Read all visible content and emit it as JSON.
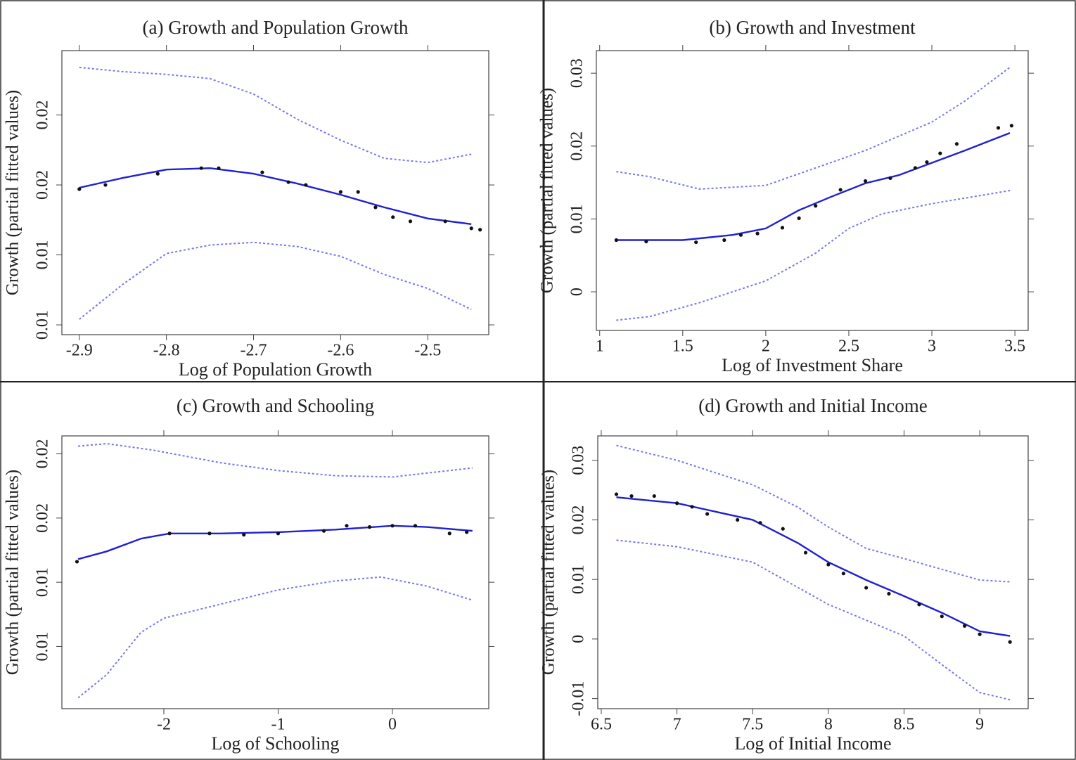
{
  "chart_data": [
    {
      "type": "line",
      "title": "(a) Growth and Population Growth",
      "x_label": "Log of Population Growth",
      "y_label": "Growth (partial fitted values)",
      "xlim": [
        -2.92,
        -2.43
      ],
      "ylim": [
        0.0043,
        0.0246
      ],
      "xticks": [
        -2.9,
        -2.8,
        -2.7,
        -2.6,
        -2.5
      ],
      "yticks": [
        {
          "value": 0.005,
          "label": "0.01"
        },
        {
          "value": 0.01,
          "label": "0.01"
        },
        {
          "value": 0.015,
          "label": "0.02"
        },
        {
          "value": 0.02,
          "label": "0.02"
        }
      ],
      "series": [
        {
          "style": "solid",
          "color": "#2020d0",
          "x": [
            -2.9,
            -2.85,
            -2.8,
            -2.75,
            -2.7,
            -2.65,
            -2.6,
            -2.55,
            -2.5,
            -2.45
          ],
          "values": [
            0.0148,
            0.0155,
            0.0161,
            0.0162,
            0.0158,
            0.0151,
            0.0143,
            0.0134,
            0.0126,
            0.0122
          ]
        },
        {
          "style": "dotted",
          "color": "#7777ee",
          "x": [
            -2.9,
            -2.85,
            -2.8,
            -2.75,
            -2.7,
            -2.65,
            -2.6,
            -2.55,
            -2.5,
            -2.45
          ],
          "values": [
            0.0234,
            0.0231,
            0.0229,
            0.0226,
            0.0215,
            0.0197,
            0.0182,
            0.0169,
            0.0166,
            0.0172
          ]
        },
        {
          "style": "dotted",
          "color": "#7777ee",
          "x": [
            -2.9,
            -2.85,
            -2.8,
            -2.75,
            -2.7,
            -2.65,
            -2.6,
            -2.55,
            -2.5,
            -2.45
          ],
          "values": [
            0.0054,
            0.0079,
            0.0101,
            0.0107,
            0.0109,
            0.0106,
            0.0099,
            0.0086,
            0.0076,
            0.0061
          ]
        },
        {
          "style": "points",
          "color": "#111111",
          "x": [
            -2.9,
            -2.87,
            -2.81,
            -2.76,
            -2.74,
            -2.69,
            -2.66,
            -2.64,
            -2.6,
            -2.58,
            -2.56,
            -2.54,
            -2.52,
            -2.48,
            -2.45,
            -2.44
          ],
          "values": [
            0.0147,
            0.015,
            0.0158,
            0.0162,
            0.0162,
            0.0159,
            0.0152,
            0.015,
            0.0145,
            0.0145,
            0.0134,
            0.0127,
            0.0124,
            0.0124,
            0.0119,
            0.0118
          ]
        }
      ]
    },
    {
      "type": "line",
      "title": "(b) Growth and Investment",
      "x_label": "Log of Investment Share",
      "y_label": "Growth (partial fitted values)",
      "xlim": [
        0.98,
        3.58
      ],
      "ylim": [
        -0.0053,
        0.0331
      ],
      "xticks": [
        1,
        1.5,
        2,
        2.5,
        3,
        3.5
      ],
      "yticks": [
        0,
        0.01,
        0.02,
        0.03
      ],
      "series": [
        {
          "style": "solid",
          "color": "#2020d0",
          "x": [
            1.1,
            1.5,
            1.8,
            2.0,
            2.2,
            2.4,
            2.6,
            2.8,
            3.0,
            3.2,
            3.47
          ],
          "values": [
            0.0071,
            0.0071,
            0.0078,
            0.0087,
            0.0112,
            0.0131,
            0.0149,
            0.016,
            0.0177,
            0.0194,
            0.0218
          ]
        },
        {
          "style": "dotted",
          "color": "#7777ee",
          "x": [
            1.1,
            1.3,
            1.6,
            2.0,
            2.3,
            2.6,
            3.0,
            3.2,
            3.47
          ],
          "values": [
            0.0165,
            0.0158,
            0.0141,
            0.0146,
            0.017,
            0.0194,
            0.0233,
            0.0262,
            0.0308
          ]
        },
        {
          "style": "dotted",
          "color": "#7777ee",
          "x": [
            1.1,
            1.3,
            1.6,
            2.0,
            2.3,
            2.5,
            2.7,
            3.0,
            3.47
          ],
          "values": [
            -0.0039,
            -0.0034,
            -0.0015,
            0.0015,
            0.0053,
            0.0087,
            0.0107,
            0.0121,
            0.0139
          ]
        },
        {
          "style": "points",
          "color": "#111111",
          "x": [
            1.1,
            1.28,
            1.58,
            1.75,
            1.85,
            1.95,
            2.1,
            2.2,
            2.3,
            2.45,
            2.6,
            2.75,
            2.9,
            2.97,
            3.05,
            3.15,
            3.4,
            3.48
          ],
          "values": [
            0.0071,
            0.0069,
            0.0068,
            0.0071,
            0.0078,
            0.008,
            0.0088,
            0.0101,
            0.0118,
            0.014,
            0.0152,
            0.0156,
            0.017,
            0.0178,
            0.019,
            0.0203,
            0.0225,
            0.0228
          ]
        }
      ]
    },
    {
      "type": "line",
      "title": "(c) Growth and Schooling",
      "x_label": "Log of Schooling",
      "y_label": "Growth (partial fitted values)",
      "xlim": [
        -2.892,
        0.843
      ],
      "ylim": [
        0.00015,
        0.0214
      ],
      "xticks": [
        -2,
        -1,
        0
      ],
      "yticks": [
        {
          "value": 0.005,
          "label": "0.01"
        },
        {
          "value": 0.01,
          "label": "0.01"
        },
        {
          "value": 0.015,
          "label": "0.02"
        },
        {
          "value": 0.02,
          "label": "0.02"
        }
      ],
      "series": [
        {
          "style": "solid",
          "color": "#2020d0",
          "x": [
            -2.75,
            -2.5,
            -2.2,
            -1.95,
            -1.5,
            -1,
            -0.5,
            0,
            0.3,
            0.7
          ],
          "values": [
            0.0118,
            0.0124,
            0.0134,
            0.0138,
            0.0138,
            0.0139,
            0.0141,
            0.0144,
            0.0143,
            0.014
          ]
        },
        {
          "style": "dotted",
          "color": "#7777ee",
          "x": [
            -2.75,
            -2.5,
            -2.1,
            -1.5,
            -1,
            -0.5,
            0,
            0.4,
            0.7
          ],
          "values": [
            0.0206,
            0.0208,
            0.0203,
            0.0193,
            0.0187,
            0.0183,
            0.0182,
            0.0186,
            0.0189
          ]
        },
        {
          "style": "dotted",
          "color": "#7777ee",
          "x": [
            -2.75,
            -2.5,
            -2.2,
            -2,
            -1.5,
            -1,
            -0.5,
            -0.1,
            0.3,
            0.7
          ],
          "values": [
            0.001,
            0.0028,
            0.0061,
            0.0072,
            0.0083,
            0.0094,
            0.0101,
            0.0104,
            0.0097,
            0.0086
          ]
        },
        {
          "style": "points",
          "color": "#111111",
          "x": [
            -2.76,
            -1.95,
            -1.6,
            -1.3,
            -1,
            -0.6,
            -0.4,
            -0.2,
            0,
            0.2,
            0.5,
            0.65
          ],
          "values": [
            0.0116,
            0.0138,
            0.0138,
            0.0137,
            0.0138,
            0.014,
            0.0144,
            0.0143,
            0.0144,
            0.0144,
            0.0138,
            0.0139
          ]
        }
      ]
    },
    {
      "type": "line",
      "title": "(d) Growth and Initial Income",
      "x_label": "Log of Initial Income",
      "y_label": "Growth (partial fitted values)",
      "xlim": [
        6.477,
        9.32
      ],
      "ylim": [
        -0.0117,
        0.0341
      ],
      "xticks": [
        6.5,
        7,
        7.5,
        8,
        8.5,
        9
      ],
      "yticks": [
        -0.01,
        0,
        0.01,
        0.02,
        0.03
      ],
      "series": [
        {
          "style": "solid",
          "color": "#2020d0",
          "x": [
            6.6,
            7,
            7.5,
            7.8,
            8,
            8.25,
            8.5,
            8.75,
            9,
            9.2
          ],
          "values": [
            0.0238,
            0.0228,
            0.02,
            0.0161,
            0.0129,
            0.0099,
            0.0072,
            0.0044,
            0.0013,
            0.0005
          ]
        },
        {
          "style": "dotted",
          "color": "#7777ee",
          "x": [
            6.6,
            7,
            7.5,
            7.8,
            8,
            8.25,
            8.5,
            8.75,
            9,
            9.2
          ],
          "values": [
            0.0325,
            0.03,
            0.0259,
            0.0221,
            0.0188,
            0.0152,
            0.0135,
            0.0117,
            0.0099,
            0.0096
          ]
        },
        {
          "style": "dotted",
          "color": "#7777ee",
          "x": [
            6.6,
            7,
            7.5,
            8,
            8.5,
            8.75,
            9,
            9.2
          ],
          "values": [
            0.0166,
            0.0155,
            0.0129,
            0.0058,
            0.0005,
            -0.0043,
            -0.009,
            -0.0102
          ]
        },
        {
          "style": "points",
          "color": "#111111",
          "x": [
            6.6,
            6.7,
            6.85,
            7,
            7.1,
            7.2,
            7.4,
            7.55,
            7.7,
            7.85,
            8,
            8.1,
            8.25,
            8.4,
            8.6,
            8.75,
            8.9,
            9,
            9.2
          ],
          "values": [
            0.0243,
            0.024,
            0.024,
            0.0228,
            0.0222,
            0.021,
            0.02,
            0.0195,
            0.0185,
            0.0145,
            0.0125,
            0.011,
            0.0086,
            0.0076,
            0.0058,
            0.0038,
            0.0022,
            0.0008,
            -0.0005
          ]
        }
      ]
    }
  ]
}
